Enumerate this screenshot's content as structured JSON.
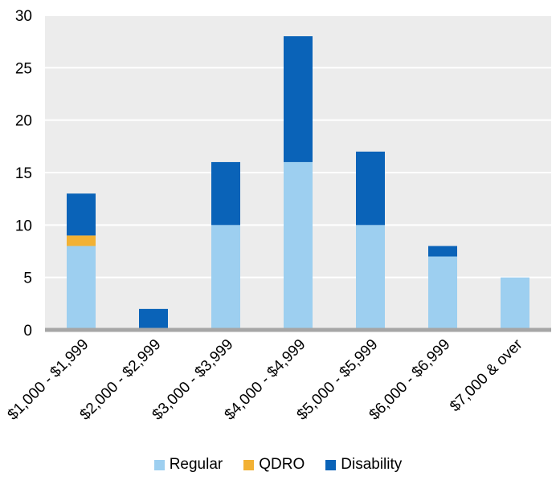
{
  "chart_data": {
    "type": "bar",
    "stacked": true,
    "categories": [
      "$1,000 - $1,999",
      "$2,000 - $2,999",
      "$3,000 - $3,999",
      "$4,000 - $4,999",
      "$5,000 - $5,999",
      "$6,000 - $6,999",
      "$7,000 & over"
    ],
    "series": [
      {
        "name": "Regular",
        "color": "#9dcff0",
        "values": [
          8,
          0,
          10,
          16,
          10,
          7,
          5
        ]
      },
      {
        "name": "QDRO",
        "color": "#f2b134",
        "values": [
          1,
          0,
          0,
          0,
          0,
          0,
          0
        ]
      },
      {
        "name": "Disability",
        "color": "#0a63b8",
        "values": [
          4,
          2,
          6,
          12,
          7,
          1,
          0
        ]
      }
    ],
    "ylim": [
      0,
      30
    ],
    "yticks": [
      "0",
      "5",
      "10",
      "15",
      "20",
      "25",
      "30"
    ],
    "grid": true,
    "legend_position": "bottom",
    "title": "",
    "xlabel": "",
    "ylabel": ""
  }
}
